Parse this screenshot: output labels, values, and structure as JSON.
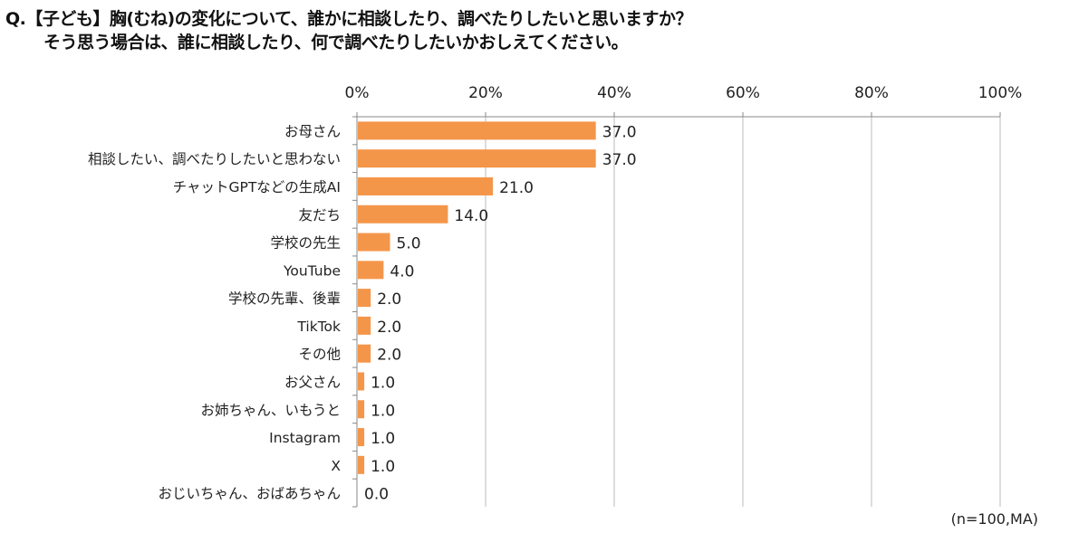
{
  "title_line1": "Q.【子ども】胸(むね)の変化について、誰かに相談したり、調べたりしたいと思いますか？",
  "title_line2": "そう思う場合は、誰に相談したり、何で調べたりしたいかおしえてください。",
  "note": "(n=100,MA)",
  "colors": {
    "bar": "#F4964A",
    "grid": "#BBBBBB",
    "axis": "#888888"
  },
  "chart_data": {
    "type": "bar",
    "orientation": "horizontal",
    "categories": [
      "お母さん",
      "相談したい、調べたりしたいと思わない",
      "チャットGPTなどの生成AI",
      "友だち",
      "学校の先生",
      "YouTube",
      "学校の先輩、後輩",
      "TikTok",
      "その他",
      "お父さん",
      "お姉ちゃん、いもうと",
      "Instagram",
      "X",
      "おじいちゃん、おばあちゃん"
    ],
    "values": [
      37.0,
      37.0,
      21.0,
      14.0,
      5.0,
      4.0,
      2.0,
      2.0,
      2.0,
      1.0,
      1.0,
      1.0,
      1.0,
      0.0
    ],
    "data_labels": [
      "37.0",
      "37.0",
      "21.0",
      "14.0",
      "5.0",
      "4.0",
      "2.0",
      "2.0",
      "2.0",
      "1.0",
      "1.0",
      "1.0",
      "1.0",
      "0.0"
    ],
    "xlim": [
      0,
      100
    ],
    "x_ticks": [
      "0%",
      "20%",
      "40%",
      "60%",
      "80%",
      "100%"
    ],
    "x_axis_position": "top",
    "grid": true,
    "legend": "none"
  }
}
